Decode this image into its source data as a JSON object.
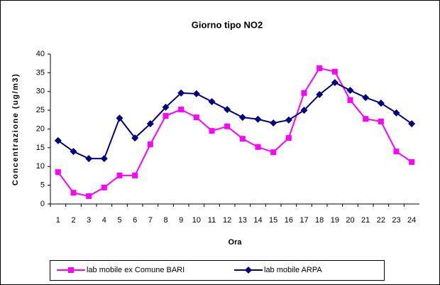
{
  "chart_data": {
    "type": "line",
    "title": "Giorno tipo NO2",
    "x_label": "Ora",
    "y_label": "Concentrazione (ug/m3)",
    "categories": [
      "1",
      "2",
      "3",
      "4",
      "5",
      "6",
      "7",
      "8",
      "9",
      "10",
      "11",
      "12",
      "13",
      "14",
      "15",
      "16",
      "17",
      "18",
      "19",
      "20",
      "21",
      "22",
      "23",
      "24"
    ],
    "series": [
      {
        "name": "lab mobile ex Comune BARI",
        "color": "#ff00ff",
        "marker": "square",
        "values": [
          8.5,
          3.0,
          2.1,
          4.4,
          7.6,
          7.6,
          15.9,
          23.5,
          25.2,
          23.1,
          19.5,
          20.7,
          17.4,
          15.2,
          13.8,
          17.6,
          29.6,
          36.2,
          35.3,
          27.7,
          22.7,
          22.0,
          14.0,
          11.2
        ]
      },
      {
        "name": "lab mobile ARPA",
        "color": "#000080",
        "marker": "diamond",
        "values": [
          16.9,
          14.0,
          12.1,
          12.1,
          22.9,
          17.6,
          21.4,
          25.8,
          29.6,
          29.4,
          27.3,
          25.2,
          23.1,
          22.6,
          21.6,
          22.4,
          25.0,
          29.2,
          32.4,
          30.3,
          28.4,
          26.9,
          24.3,
          21.4
        ]
      }
    ],
    "ylim": [
      0,
      40
    ],
    "yticks": [
      0,
      5,
      10,
      15,
      20,
      25,
      30,
      35,
      40
    ],
    "grid": false,
    "legend": "bottom"
  }
}
